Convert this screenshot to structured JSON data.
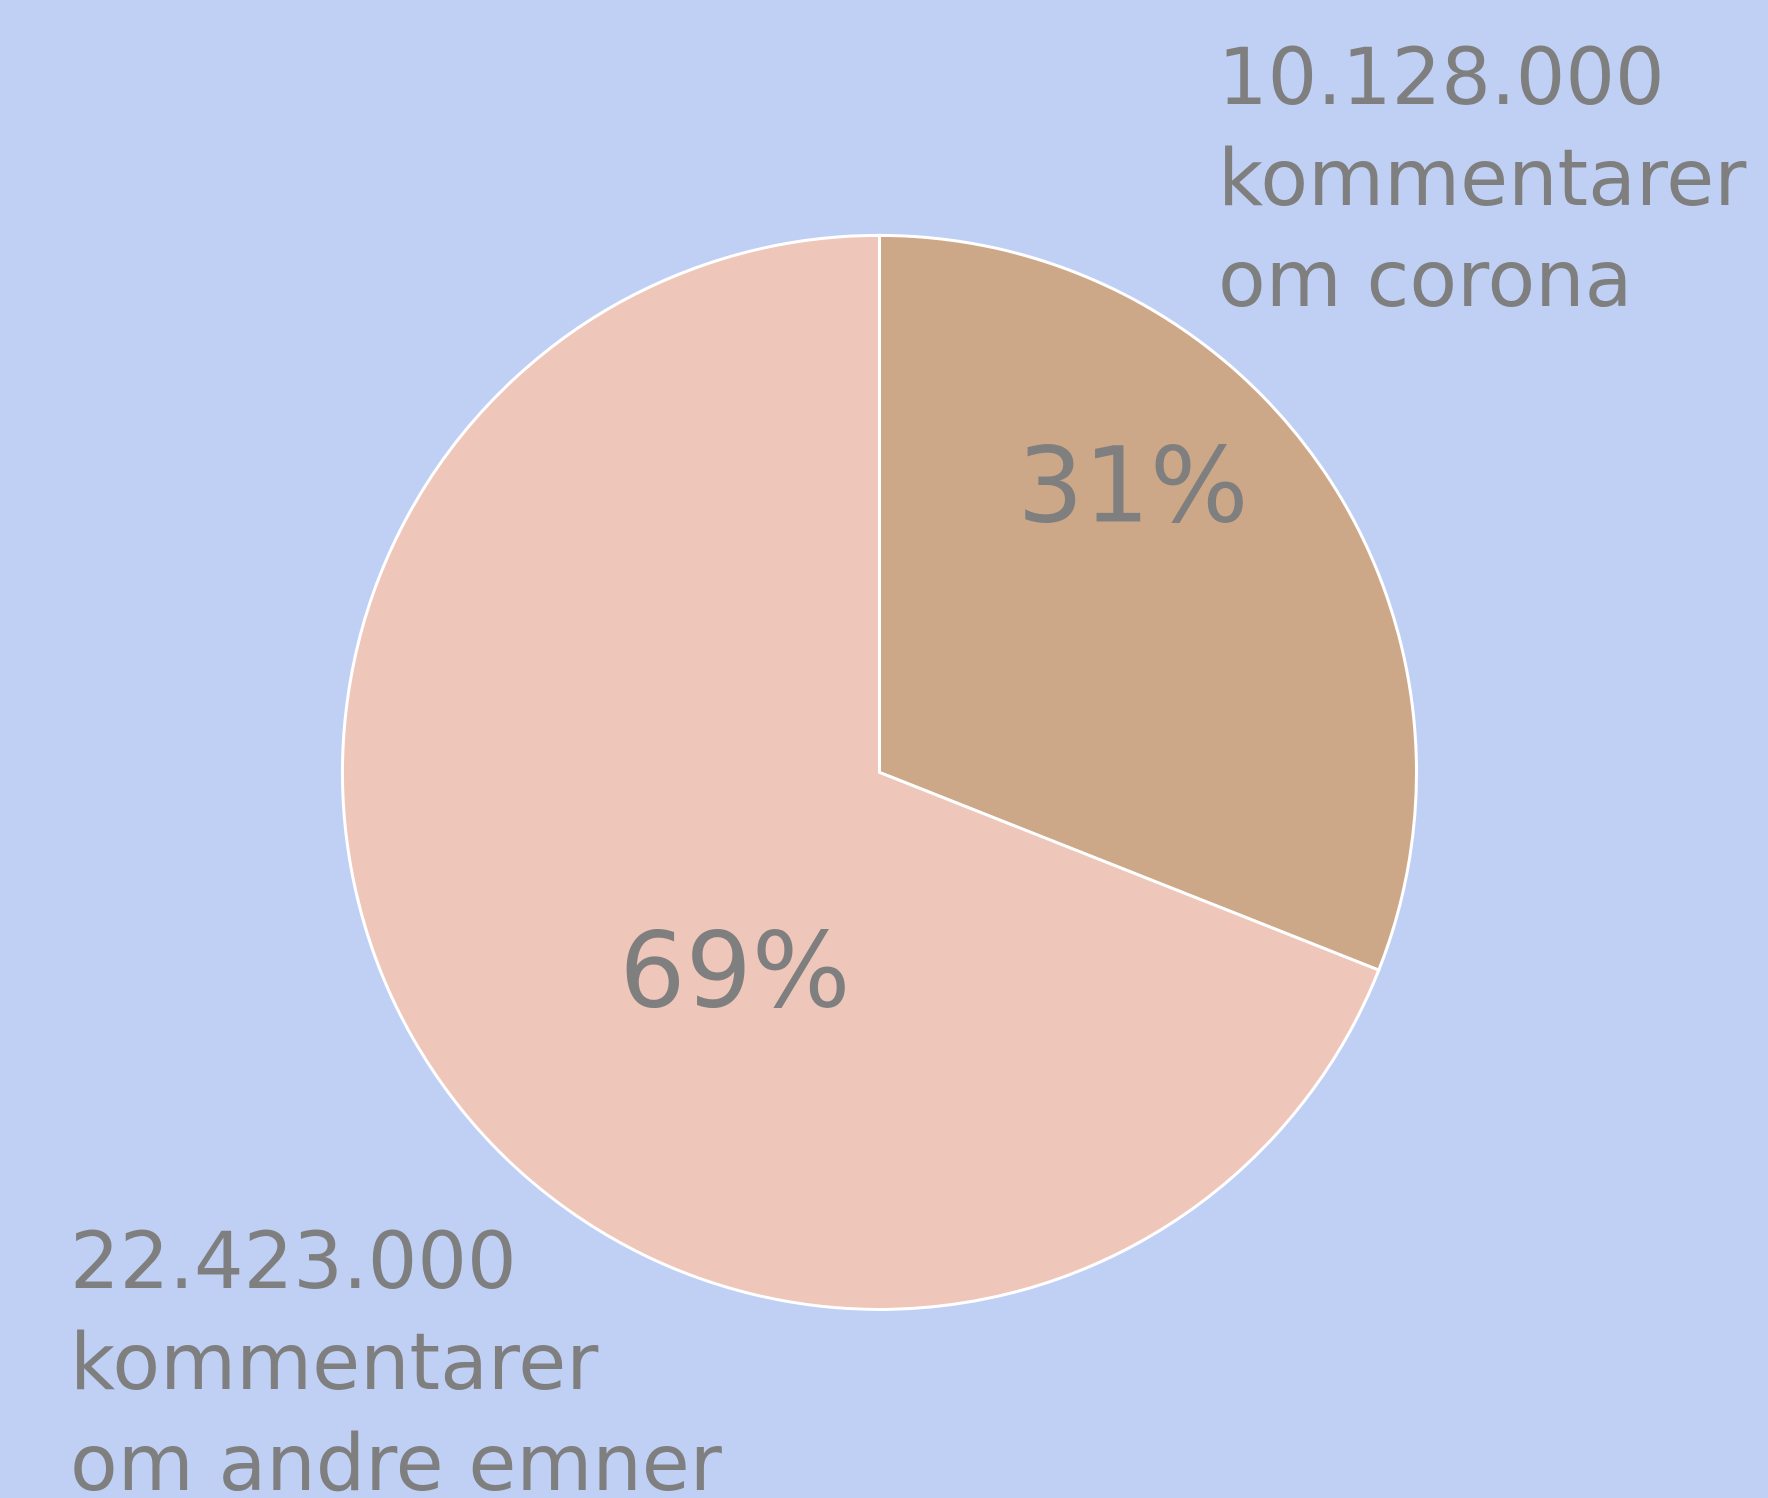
{
  "chart_data": {
    "type": "pie",
    "series": [
      {
        "values": [
          31,
          69
        ],
        "value_labels": [
          "31%",
          "69%"
        ],
        "colors": [
          "#cca888",
          "#eec6ba"
        ]
      }
    ],
    "annotations": [
      {
        "lines": [
          "10.128.000",
          "kommentarer",
          "om corona"
        ]
      },
      {
        "lines": [
          "22.423.000",
          "kommentarer",
          "om andre emner"
        ]
      }
    ]
  }
}
